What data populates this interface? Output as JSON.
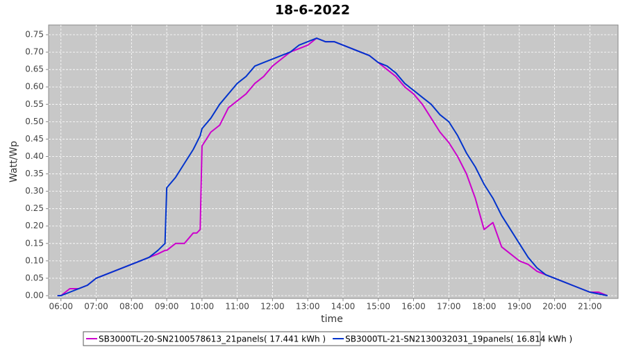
{
  "chart_data": {
    "type": "line",
    "title": "18-6-2022",
    "x_label": "time",
    "y_label": "Watt/Wp",
    "x": [
      5.9,
      6,
      6.25,
      6.5,
      6.75,
      7,
      7.25,
      7.5,
      7.75,
      8,
      8.25,
      8.5,
      8.75,
      8.95,
      9,
      9.25,
      9.5,
      9.75,
      9.85,
      9.95,
      10,
      10.25,
      10.5,
      10.75,
      11,
      11.25,
      11.5,
      11.75,
      12,
      12.25,
      12.5,
      12.75,
      13,
      13.25,
      13.5,
      13.75,
      14,
      14.25,
      14.5,
      14.75,
      15,
      15.25,
      15.5,
      15.75,
      16,
      16.25,
      16.5,
      16.75,
      17,
      17.25,
      17.5,
      17.75,
      18,
      18.25,
      18.5,
      18.75,
      19,
      19.25,
      19.5,
      19.75,
      20,
      20.25,
      20.5,
      20.75,
      21,
      21.25,
      21.5
    ],
    "series": [
      {
        "name": "SB3000TL-20-SN2100578613_21panels( 17.441 kWh )",
        "color": "#cc00cc",
        "values": [
          0,
          0,
          0.02,
          0.02,
          0.03,
          0.05,
          0.06,
          0.07,
          0.08,
          0.09,
          0.1,
          0.11,
          0.12,
          0.13,
          0.13,
          0.15,
          0.15,
          0.18,
          0.18,
          0.19,
          0.43,
          0.47,
          0.49,
          0.54,
          0.56,
          0.58,
          0.61,
          0.63,
          0.66,
          0.68,
          0.7,
          0.71,
          0.72,
          0.74,
          0.73,
          0.73,
          0.72,
          0.71,
          0.7,
          0.69,
          0.67,
          0.65,
          0.63,
          0.6,
          0.58,
          0.55,
          0.51,
          0.47,
          0.44,
          0.4,
          0.35,
          0.28,
          0.19,
          0.21,
          0.14,
          0.12,
          0.1,
          0.09,
          0.07,
          0.06,
          0.05,
          0.04,
          0.03,
          0.02,
          0.01,
          0.01,
          0
        ]
      },
      {
        "name": "SB3000TL-21-SN2130032031_19panels( 16.814 kWh )",
        "color": "#0033cc",
        "values": [
          0,
          0,
          0.01,
          0.02,
          0.03,
          0.05,
          0.06,
          0.07,
          0.08,
          0.09,
          0.1,
          0.11,
          0.13,
          0.15,
          0.31,
          0.34,
          0.38,
          0.42,
          0.44,
          0.46,
          0.48,
          0.51,
          0.55,
          0.58,
          0.61,
          0.63,
          0.66,
          0.67,
          0.68,
          0.69,
          0.7,
          0.72,
          0.73,
          0.74,
          0.73,
          0.73,
          0.72,
          0.71,
          0.7,
          0.69,
          0.67,
          0.66,
          0.64,
          0.61,
          0.59,
          0.57,
          0.55,
          0.52,
          0.5,
          0.46,
          0.41,
          0.37,
          0.32,
          0.28,
          0.23,
          0.19,
          0.15,
          0.11,
          0.08,
          0.06,
          0.05,
          0.04,
          0.03,
          0.02,
          0.01,
          0.005,
          0
        ]
      }
    ],
    "xlim": [
      5.65,
      21.8
    ],
    "ylim": [
      -0.008,
      0.778
    ],
    "xticks": [
      {
        "value": 6,
        "label": "06:00"
      },
      {
        "value": 7,
        "label": "07:00"
      },
      {
        "value": 8,
        "label": "08:00"
      },
      {
        "value": 9,
        "label": "09:00"
      },
      {
        "value": 10,
        "label": "10:00"
      },
      {
        "value": 11,
        "label": "11:00"
      },
      {
        "value": 12,
        "label": "12:00"
      },
      {
        "value": 13,
        "label": "13:00"
      },
      {
        "value": 14,
        "label": "14:00"
      },
      {
        "value": 15,
        "label": "15:00"
      },
      {
        "value": 16,
        "label": "16:00"
      },
      {
        "value": 17,
        "label": "17:00"
      },
      {
        "value": 18,
        "label": "18:00"
      },
      {
        "value": 19,
        "label": "19:00"
      },
      {
        "value": 20,
        "label": "20:00"
      },
      {
        "value": 21,
        "label": "21:00"
      }
    ],
    "yticks": [
      {
        "value": 0,
        "label": "0.00"
      },
      0.05,
      {
        "value": 0.1,
        "label": "0.10"
      },
      0.15,
      {
        "value": 0.2,
        "label": "0.20"
      },
      0.25,
      {
        "value": 0.3,
        "label": "0.30"
      },
      0.35,
      {
        "value": 0.4,
        "label": "0.40"
      },
      0.45,
      {
        "value": 0.5,
        "label": "0.50"
      },
      0.55,
      {
        "value": 0.6,
        "label": "0.60"
      },
      0.65,
      {
        "value": 0.7,
        "label": "0.70"
      },
      0.75
    ],
    "grid": true,
    "legend": "bottom"
  }
}
